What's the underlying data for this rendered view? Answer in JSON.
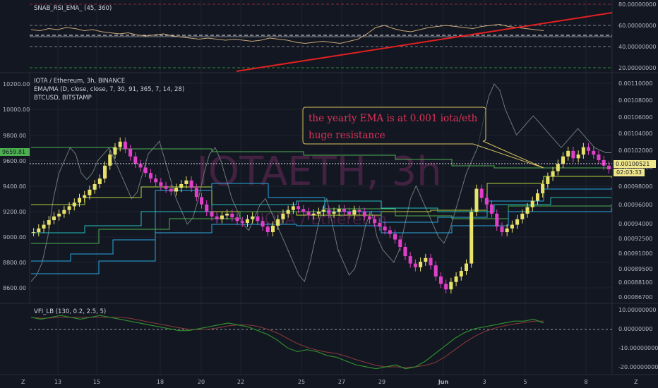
{
  "colors": {
    "background": "#131722",
    "grid": "#1f2330",
    "candle_up": "#e8e26a",
    "candle_down": "#e040c8",
    "rsi_line": "#c8a878",
    "trendline": "#e02020",
    "btc_line": "#6b7a78",
    "ema_green": "#4caf50",
    "ema_lime": "#b5d33a",
    "ma_blue": "#2aa8e0",
    "ma_teal": "#20c0c0",
    "vfi_line": "#2e8b2e",
    "vfi_signal": "#8b3a3a",
    "annotation_border": "#d8c060",
    "annotation_text": "#e0335a",
    "price_tag": "#f0e68c",
    "left_tag": "#4caf50"
  },
  "watermark": {
    "main": "IOTAETH, 3h",
    "sub": "IOTA / Ethereum"
  },
  "annotation": {
    "line1": "the yearly EMA is at 0.001 iota/eth",
    "line2": "huge resistance"
  },
  "panes": {
    "rsi": {
      "label": "SNAB_RSI_EMA_ (45, 360)"
    },
    "price": {
      "symbol": "IOTA / Ethereum, 3h, BINANCE",
      "study1": "EMA/MA (D, close, close, 7, 30, 91, 365, 7, 14, 28)",
      "study2": "BTCUSD, BITSTAMP"
    },
    "vfi": {
      "label": "VFI_LB (130, 0.2, 2.5, 5)"
    }
  },
  "tags": {
    "price_last": "0.00100521",
    "countdown": "02:03:33",
    "left_price": "9659.81"
  },
  "chart_data": {
    "type": "line",
    "right_axis_rsi": [
      "80.00000000",
      "60.00000000",
      "40.00000000",
      "20.00000000"
    ],
    "right_axis_price": [
      "0.00110000",
      "0.00108000",
      "0.00106000",
      "0.00104000",
      "0.00102000",
      "0.00100000",
      "0.00098000",
      "0.00096000",
      "0.00094000",
      "0.00092500",
      "0.00091000",
      "0.00089500",
      "0.00088100",
      "0.00086700"
    ],
    "left_axis_btc": [
      "10200.00",
      "10000.00",
      "9800.00",
      "9600.00",
      "9400.00",
      "9200.00",
      "9000.00",
      "8800.00",
      "8600.00"
    ],
    "right_axis_vfi": [
      "10.00000000",
      "0.00000000",
      "-10.00000000",
      "-20.00000000"
    ],
    "x_ticks": [
      "13",
      "15",
      "18",
      "20",
      "22",
      "25",
      "27",
      "29",
      "Jun",
      "3",
      "5",
      "8"
    ],
    "corner_left": "Z",
    "corner_right": "Z",
    "price_close_series": [
      0.000938,
      0.000942,
      0.000946,
      0.000951,
      0.000955,
      0.000958,
      0.000962,
      0.000966,
      0.00097,
      0.000975,
      0.000978,
      0.000984,
      0.00099,
      0.000996,
      0.00101,
      0.001022,
      0.00103,
      0.001036,
      0.001028,
      0.00102,
      0.001012,
      0.001008,
      0.001002,
      0.000996,
      0.000992,
      0.000988,
      0.000985,
      0.000982,
      0.000986,
      0.00099,
      0.000994,
      0.000986,
      0.000976,
      0.000968,
      0.00096,
      0.000955,
      0.000952,
      0.000956,
      0.000958,
      0.000954,
      0.00095,
      0.000948,
      0.000952,
      0.000955,
      0.00095,
      0.000944,
      0.000938,
      0.000945,
      0.000952,
      0.000958,
      0.000962,
      0.000966,
      0.000963,
      0.00096,
      0.000956,
      0.000958,
      0.00096,
      0.000962,
      0.000958,
      0.00096,
      0.000963,
      0.00096,
      0.000957,
      0.000962,
      0.00096,
      0.000955,
      0.000952,
      0.000948,
      0.000944,
      0.00094,
      0.000936,
      0.00093,
      0.000922,
      0.000912,
      0.000904,
      0.0009,
      0.000906,
      0.00091,
      0.000902,
      0.00089,
      0.000882,
      0.000876,
      0.000884,
      0.00089,
      0.000896,
      0.000904,
      0.00096,
      0.000985,
      0.000975,
      0.000968,
      0.000958,
      0.000944,
      0.000938,
      0.000942,
      0.000946,
      0.000952,
      0.000958,
      0.000965,
      0.000972,
      0.00098,
      0.00099,
      0.000998,
      0.001004,
      0.001012,
      0.00102,
      0.001026,
      0.001018,
      0.001022,
      0.00103,
      0.001026,
      0.001022,
      0.001016,
      0.00101,
      0.001006
    ],
    "btc_series": [
      8650,
      8700,
      8800,
      9000,
      9300,
      9500,
      9600,
      9700,
      9650,
      9500,
      9450,
      9500,
      9600,
      9650,
      9700,
      9600,
      9500,
      9400,
      9300,
      9350,
      9500,
      9650,
      9700,
      9750,
      9600,
      9450,
      9300,
      9200,
      9100,
      9150,
      9300,
      9500,
      9650,
      9700,
      9600,
      9450,
      9300,
      9200,
      9100,
      9050,
      9150,
      9250,
      9300,
      9200,
      9100,
      9000,
      8900,
      8800,
      8700,
      8650,
      8800,
      9000,
      9200,
      9300,
      9100,
      8900,
      8800,
      8700,
      8750,
      8900,
      9100,
      9200,
      9000,
      8900,
      8850,
      8800,
      8900,
      9100,
      9300,
      9400,
      9300,
      9200,
      9100,
      9000,
      8950,
      9050,
      9200,
      9350,
      9500,
      9600,
      9700,
      9900,
      10100,
      10200,
      10150,
      10000,
      9900,
      9800,
      9850,
      9900,
      9950,
      9900,
      9850,
      9800,
      9750,
      9700,
      9750,
      9800,
      9850,
      9800,
      9750,
      9700,
      9680,
      9660,
      9660
    ]
  }
}
